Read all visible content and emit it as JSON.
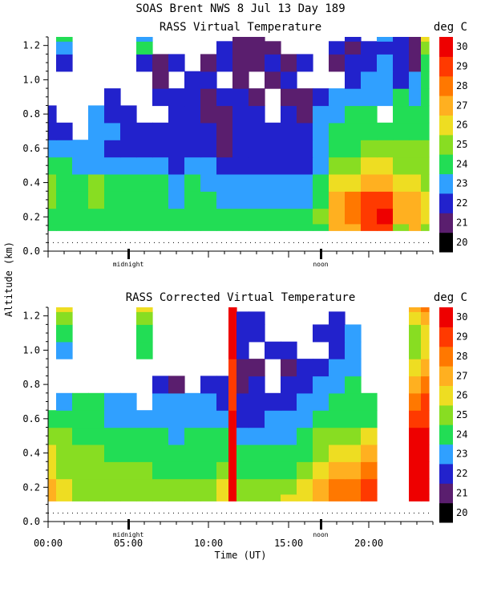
{
  "header": {
    "title": "SOAS Brent NWS    8 Jul 13 Day 189"
  },
  "chart_data": [
    {
      "type": "heatmap",
      "title": "RASS Virtual Temperature",
      "units_label": "deg C",
      "ylabel": "Altitude (km)",
      "ylim": [
        0.0,
        1.25
      ],
      "yticks": [
        "0.0",
        "0.2",
        "0.4",
        "0.6",
        "0.8",
        "1.0",
        "1.2"
      ],
      "xlim": [
        0,
        24
      ],
      "xticks": [
        "00:00",
        "05:00",
        "10:00",
        "15:00",
        "20:00"
      ],
      "markers": [
        "midnight",
        "noon"
      ],
      "colorbar": {
        "min": 20,
        "max": 31,
        "labels": [
          "20",
          "21",
          "22",
          "23",
          "24",
          "25",
          "26",
          "27",
          "28",
          "29",
          "30"
        ]
      },
      "times": [
        0,
        1,
        2,
        3,
        4,
        5,
        6,
        7,
        8,
        9,
        10,
        11,
        12,
        13,
        14,
        15,
        16,
        17,
        18,
        19,
        20,
        21,
        22,
        23,
        23.5
      ],
      "heights": [
        0.12,
        0.2,
        0.3,
        0.4,
        0.5,
        0.6,
        0.7,
        0.8,
        0.9,
        1.0,
        1.1,
        1.2,
        1.25
      ],
      "temps": [
        [
          24,
          24,
          24,
          24,
          24,
          24,
          24,
          24,
          24,
          24,
          24,
          24,
          24,
          24,
          24,
          24,
          24,
          24,
          27,
          27,
          29,
          29,
          25,
          27,
          25
        ],
        [
          24,
          24,
          24,
          24,
          24,
          24,
          24,
          24,
          24,
          24,
          24,
          24,
          24,
          24,
          24,
          24,
          24,
          25,
          27,
          28,
          29,
          30,
          27,
          27,
          26
        ],
        [
          25,
          24,
          24,
          25,
          24,
          24,
          24,
          24,
          23,
          24,
          24,
          23,
          23,
          23,
          23,
          23,
          23,
          24,
          27,
          28,
          29,
          29,
          27,
          27,
          26
        ],
        [
          25,
          24,
          24,
          25,
          24,
          24,
          24,
          24,
          23,
          24,
          23,
          23,
          23,
          23,
          23,
          23,
          23,
          24,
          26,
          26,
          27,
          27,
          26,
          26,
          25
        ],
        [
          24,
          24,
          23,
          23,
          23,
          23,
          23,
          23,
          22,
          23,
          23,
          22,
          22,
          22,
          22,
          22,
          22,
          23,
          25,
          25,
          26,
          26,
          25,
          25,
          25
        ],
        [
          23,
          23,
          23,
          23,
          22,
          22,
          22,
          22,
          22,
          22,
          22,
          21,
          22,
          22,
          22,
          22,
          22,
          23,
          24,
          24,
          25,
          25,
          25,
          25,
          25
        ],
        [
          22,
          22,
          null,
          23,
          23,
          22,
          22,
          22,
          22,
          22,
          22,
          21,
          22,
          22,
          22,
          22,
          22,
          23,
          24,
          24,
          24,
          24,
          24,
          24,
          24
        ],
        [
          22,
          null,
          null,
          23,
          22,
          22,
          null,
          null,
          22,
          22,
          21,
          21,
          22,
          22,
          null,
          22,
          21,
          23,
          23,
          24,
          24,
          null,
          24,
          24,
          24
        ],
        [
          null,
          null,
          null,
          null,
          22,
          null,
          null,
          22,
          22,
          22,
          21,
          22,
          22,
          21,
          null,
          21,
          21,
          22,
          23,
          23,
          23,
          23,
          24,
          23,
          24
        ],
        [
          null,
          null,
          null,
          null,
          null,
          null,
          null,
          21,
          null,
          22,
          22,
          null,
          21,
          null,
          21,
          22,
          null,
          null,
          null,
          22,
          23,
          23,
          22,
          23,
          24
        ],
        [
          null,
          22,
          null,
          null,
          null,
          null,
          22,
          21,
          22,
          null,
          21,
          22,
          21,
          21,
          22,
          21,
          22,
          null,
          21,
          22,
          22,
          23,
          22,
          21,
          24
        ],
        [
          null,
          23,
          null,
          null,
          null,
          null,
          24,
          null,
          null,
          null,
          null,
          22,
          21,
          21,
          21,
          null,
          null,
          null,
          22,
          21,
          22,
          22,
          22,
          21,
          25
        ],
        [
          null,
          24,
          null,
          null,
          null,
          null,
          23,
          null,
          null,
          null,
          null,
          null,
          21,
          21,
          null,
          null,
          null,
          null,
          null,
          22,
          null,
          23,
          22,
          21,
          26
        ]
      ]
    },
    {
      "type": "heatmap",
      "title": "RASS Corrected Virtual Temperature",
      "units_label": "deg C",
      "ylabel": "Altitude (km)",
      "ylim": [
        0.0,
        1.25
      ],
      "yticks": [
        "0.0",
        "0.2",
        "0.4",
        "0.6",
        "0.8",
        "1.0",
        "1.2"
      ],
      "xlim": [
        0,
        24
      ],
      "xticks": [
        "00:00",
        "05:00",
        "10:00",
        "15:00",
        "20:00"
      ],
      "markers": [
        "midnight",
        "noon"
      ],
      "xlabel": "Time (UT)",
      "colorbar": {
        "min": 20,
        "max": 31,
        "labels": [
          "20",
          "21",
          "22",
          "23",
          "24",
          "25",
          "26",
          "27",
          "28",
          "29",
          "30"
        ]
      },
      "times": [
        0,
        1,
        2,
        3,
        4,
        5,
        6,
        7,
        8,
        9,
        10,
        11,
        11.5,
        12,
        13,
        14,
        15,
        16,
        17,
        18,
        19,
        20,
        21,
        22,
        23,
        23.5
      ],
      "heights": [
        0.12,
        0.2,
        0.3,
        0.4,
        0.5,
        0.6,
        0.7,
        0.8,
        0.9,
        1.0,
        1.1,
        1.2,
        1.25
      ],
      "temps": [
        [
          27,
          26,
          25,
          25,
          25,
          25,
          25,
          25,
          25,
          25,
          25,
          26,
          30,
          25,
          25,
          25,
          26,
          26,
          27,
          28,
          28,
          29,
          null,
          null,
          30,
          30
        ],
        [
          27,
          26,
          25,
          25,
          25,
          25,
          25,
          25,
          25,
          25,
          25,
          26,
          30,
          25,
          25,
          25,
          25,
          26,
          27,
          28,
          28,
          29,
          null,
          null,
          30,
          30
        ],
        [
          26,
          25,
          25,
          25,
          25,
          25,
          25,
          24,
          24,
          24,
          24,
          25,
          30,
          24,
          24,
          24,
          24,
          25,
          26,
          27,
          27,
          28,
          null,
          null,
          30,
          30
        ],
        [
          26,
          25,
          25,
          25,
          24,
          24,
          24,
          24,
          24,
          24,
          24,
          24,
          30,
          24,
          24,
          24,
          24,
          24,
          25,
          26,
          26,
          27,
          null,
          null,
          30,
          30
        ],
        [
          25,
          25,
          24,
          24,
          24,
          24,
          24,
          24,
          23,
          24,
          24,
          24,
          30,
          23,
          23,
          23,
          23,
          24,
          25,
          25,
          25,
          26,
          null,
          null,
          30,
          30
        ],
        [
          24,
          24,
          24,
          24,
          23,
          23,
          23,
          23,
          23,
          23,
          23,
          23,
          30,
          22,
          22,
          23,
          23,
          23,
          24,
          24,
          24,
          24,
          null,
          null,
          29,
          29
        ],
        [
          null,
          23,
          24,
          24,
          23,
          23,
          null,
          23,
          23,
          23,
          23,
          22,
          29,
          22,
          22,
          22,
          22,
          23,
          23,
          24,
          24,
          24,
          null,
          null,
          28,
          29
        ],
        [
          null,
          null,
          null,
          null,
          null,
          null,
          null,
          22,
          21,
          null,
          22,
          22,
          29,
          21,
          22,
          null,
          22,
          22,
          23,
          23,
          24,
          null,
          null,
          null,
          27,
          28
        ],
        [
          null,
          null,
          null,
          null,
          null,
          null,
          null,
          null,
          null,
          null,
          null,
          null,
          29,
          21,
          21,
          null,
          21,
          22,
          22,
          23,
          23,
          null,
          null,
          null,
          26,
          27
        ],
        [
          null,
          23,
          null,
          null,
          null,
          null,
          24,
          null,
          null,
          null,
          null,
          null,
          30,
          22,
          null,
          22,
          22,
          null,
          null,
          22,
          23,
          null,
          null,
          null,
          25,
          26
        ],
        [
          null,
          24,
          null,
          null,
          null,
          null,
          24,
          null,
          null,
          null,
          null,
          null,
          30,
          22,
          22,
          null,
          null,
          null,
          22,
          22,
          23,
          null,
          null,
          null,
          25,
          26
        ],
        [
          null,
          25,
          null,
          null,
          null,
          null,
          25,
          null,
          null,
          null,
          null,
          null,
          30,
          22,
          22,
          null,
          null,
          null,
          null,
          22,
          null,
          null,
          null,
          null,
          26,
          27
        ],
        [
          null,
          26,
          null,
          null,
          null,
          null,
          26,
          null,
          null,
          null,
          null,
          null,
          30,
          null,
          null,
          null,
          null,
          null,
          null,
          null,
          null,
          null,
          null,
          null,
          27,
          28
        ]
      ]
    }
  ],
  "colors": {
    "scale": [
      "#000000",
      "#5a1e6e",
      "#2222cc",
      "#30a0ff",
      "#22dd55",
      "#88dd22",
      "#eedd22",
      "#ffb020",
      "#ff7800",
      "#ff3a00",
      "#ee0000"
    ]
  }
}
